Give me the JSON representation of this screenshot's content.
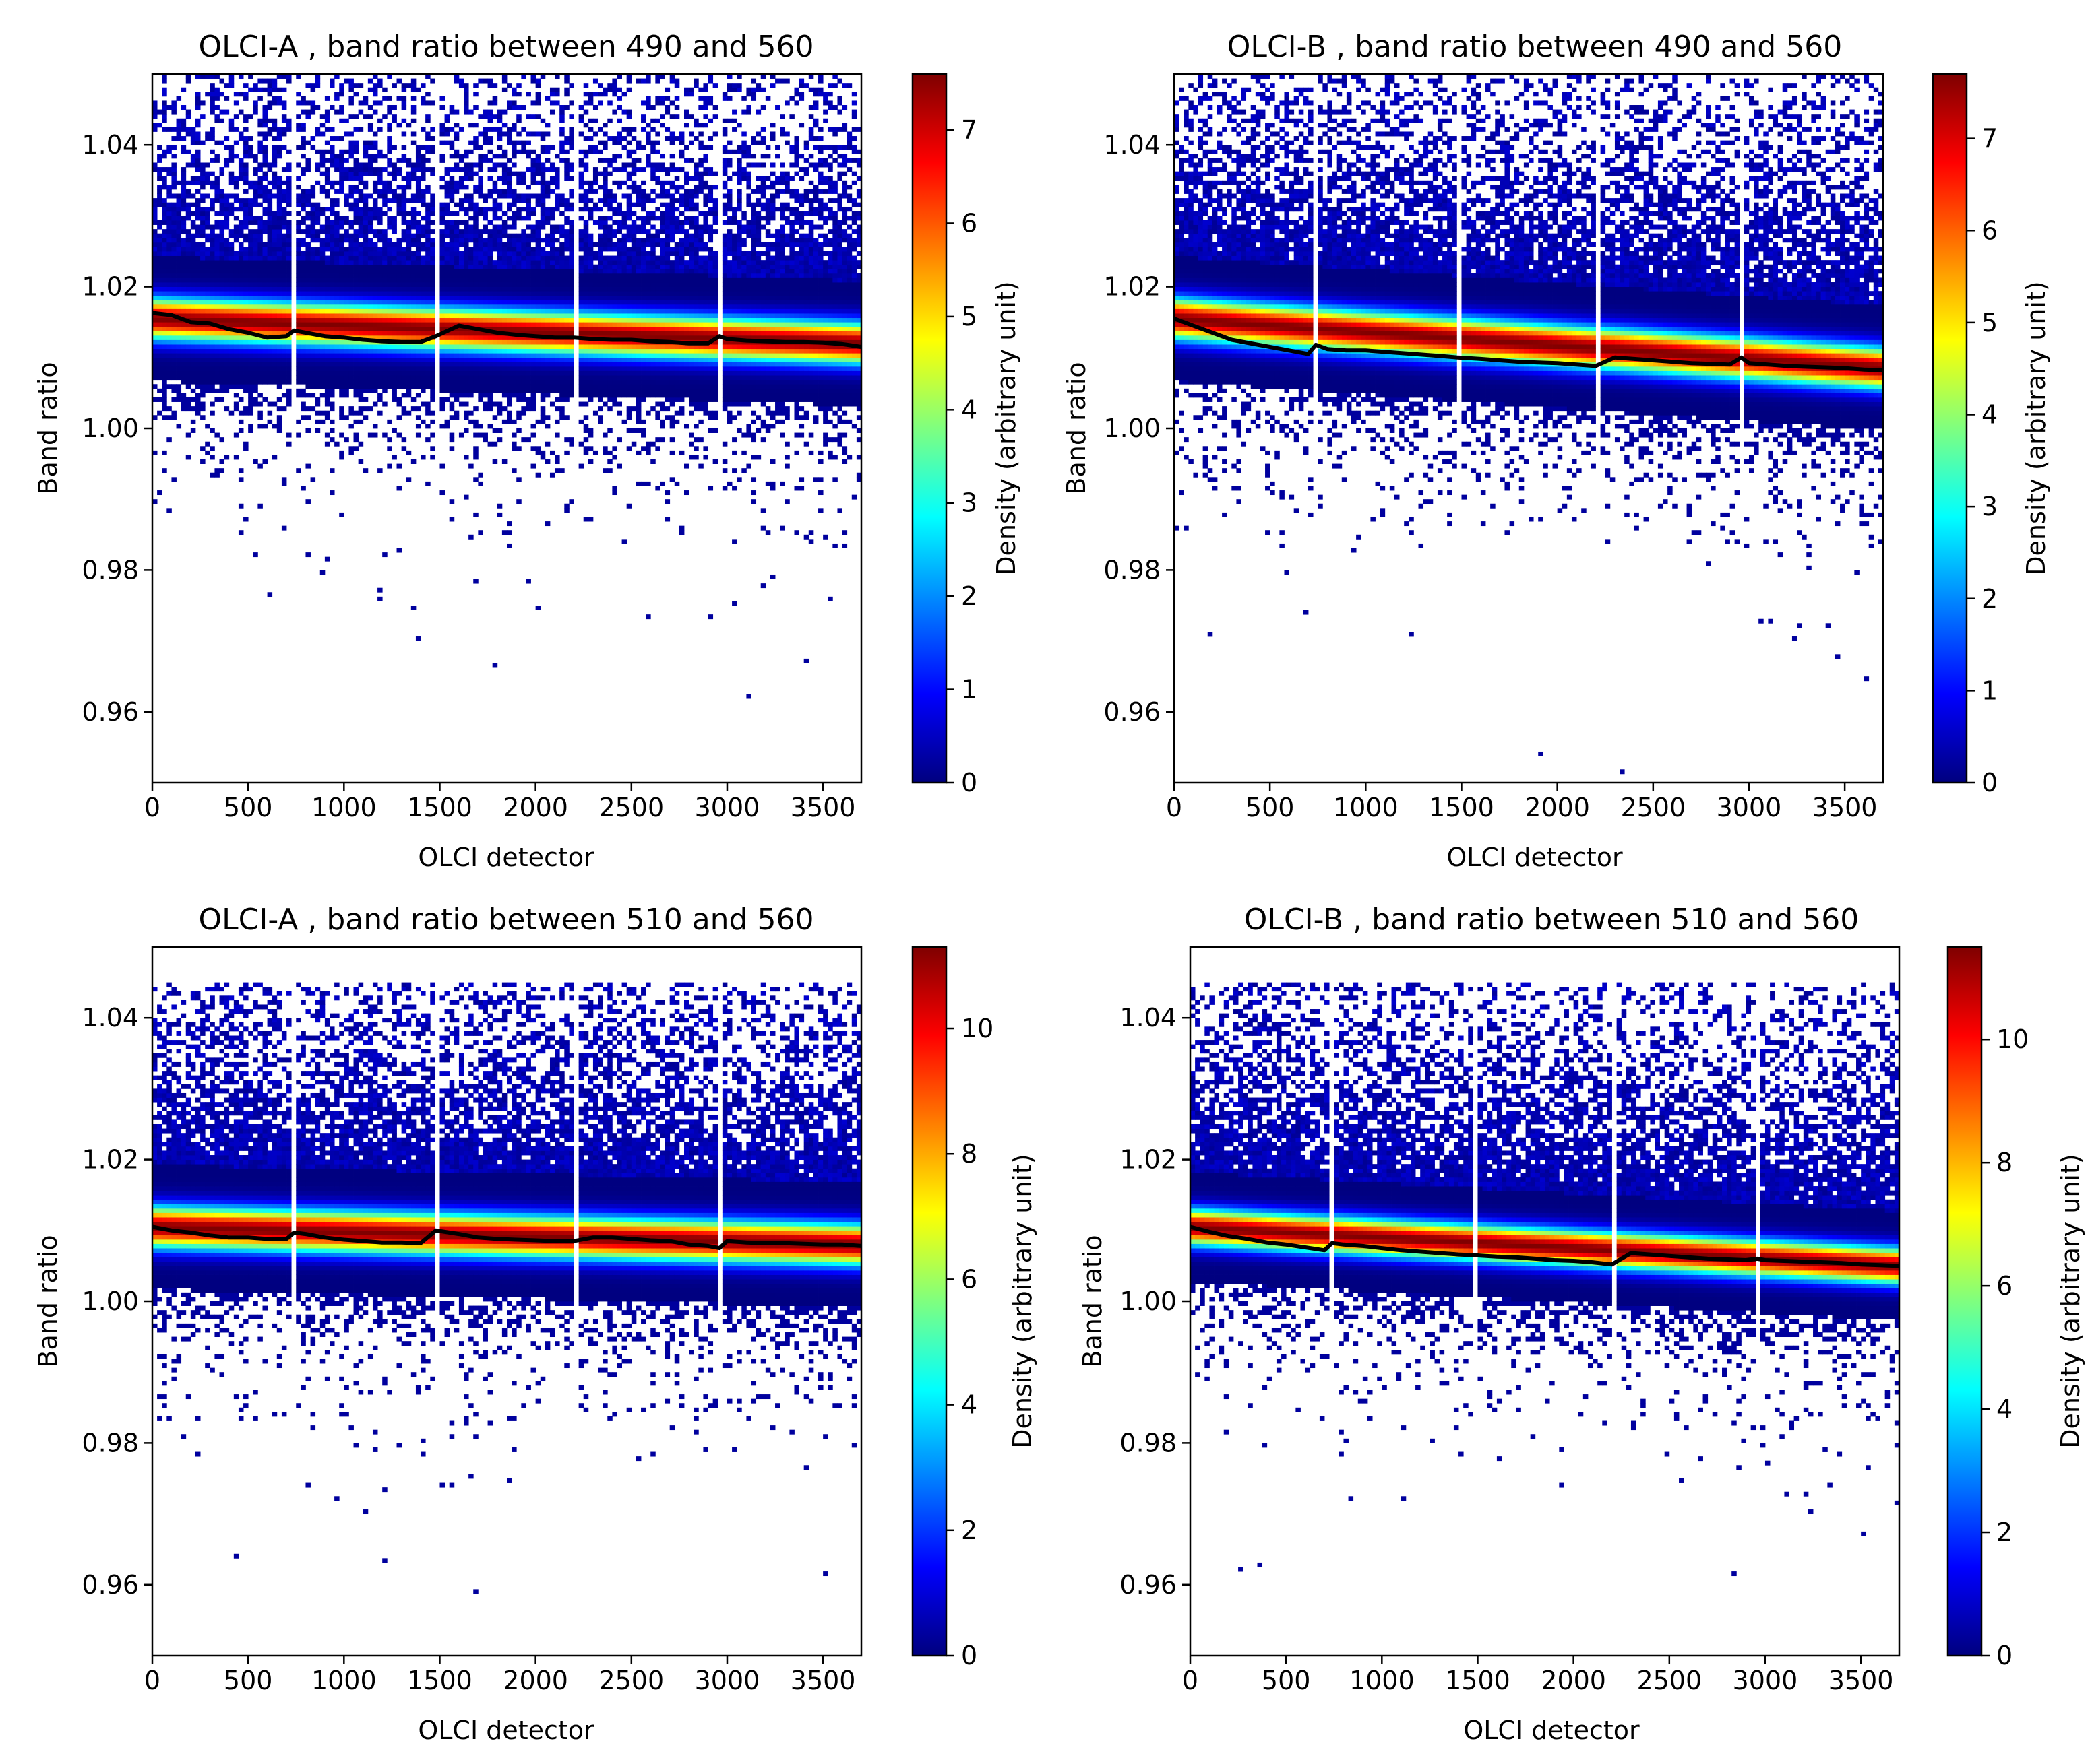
{
  "figure": {
    "layout": "2x2 grid of density heatmaps with colorbars"
  },
  "colors": {
    "median_line": "#000000",
    "colormap": "jet",
    "colormap_stops": [
      "#00007f",
      "#0000ff",
      "#007fff",
      "#00ffff",
      "#7fff7f",
      "#ffff00",
      "#ff7f00",
      "#ff0000",
      "#7f0000"
    ],
    "axes": "#000000",
    "background": "#ffffff"
  },
  "chart_data": [
    {
      "type": "heatmap",
      "title": "OLCI-A , band ratio between 490 and 560",
      "xlabel": "OLCI detector",
      "ylabel": "Band ratio",
      "xlim": [
        0,
        3700
      ],
      "ylim": [
        0.95,
        1.05
      ],
      "xticks": [
        0,
        500,
        1000,
        1500,
        2000,
        2500,
        3000,
        3500
      ],
      "yticks": [
        0.96,
        0.98,
        1.0,
        1.02,
        1.04
      ],
      "ytick_labels": [
        "0.96",
        "0.98",
        "1.00",
        "1.02",
        "1.04"
      ],
      "colorbar": {
        "label": "Density (arbitrary unit)",
        "ticks": [
          0,
          1,
          2,
          3,
          4,
          5,
          6,
          7
        ],
        "range": [
          0,
          7.6
        ]
      },
      "camera_gaps": [
        740,
        1480,
        2220,
        2960
      ],
      "band_center_start": 1.0155,
      "band_center_end": 1.012,
      "band_halfwidth": 0.004,
      "scatter_upper_to": 1.05,
      "median_line": {
        "x": [
          0,
          100,
          200,
          300,
          400,
          500,
          600,
          700,
          740,
          800,
          900,
          1000,
          1100,
          1200,
          1300,
          1400,
          1480,
          1600,
          1700,
          1800,
          1900,
          2000,
          2100,
          2200,
          2300,
          2400,
          2500,
          2600,
          2700,
          2800,
          2900,
          2960,
          3000,
          3100,
          3200,
          3300,
          3400,
          3500,
          3600,
          3700
        ],
        "y": [
          1.0163,
          1.016,
          1.015,
          1.0148,
          1.014,
          1.0135,
          1.0128,
          1.013,
          1.0138,
          1.0135,
          1.013,
          1.0128,
          1.0125,
          1.0123,
          1.0122,
          1.0122,
          1.013,
          1.0145,
          1.014,
          1.0135,
          1.0132,
          1.013,
          1.0128,
          1.0128,
          1.0126,
          1.0125,
          1.0125,
          1.0123,
          1.0122,
          1.012,
          1.012,
          1.013,
          1.0126,
          1.0124,
          1.0123,
          1.0122,
          1.0122,
          1.0121,
          1.0119,
          1.0115
        ]
      }
    },
    {
      "type": "heatmap",
      "title": "OLCI-B , band ratio between 490 and 560",
      "xlabel": "OLCI detector",
      "ylabel": "Band ratio",
      "xlim": [
        0,
        3700
      ],
      "ylim": [
        0.95,
        1.05
      ],
      "xticks": [
        0,
        500,
        1000,
        1500,
        2000,
        2500,
        3000,
        3500
      ],
      "yticks": [
        0.96,
        0.98,
        1.0,
        1.02,
        1.04
      ],
      "ytick_labels": [
        "0.96",
        "0.98",
        "1.00",
        "1.02",
        "1.04"
      ],
      "colorbar": {
        "label": "Density (arbitrary unit)",
        "ticks": [
          0,
          1,
          2,
          3,
          4,
          5,
          6,
          7
        ],
        "range": [
          0,
          7.7
        ]
      },
      "camera_gaps": [
        740,
        1480,
        2220,
        2960
      ],
      "band_center_start": 1.0155,
      "band_center_end": 1.0085,
      "band_halfwidth": 0.004,
      "scatter_upper_to": 1.05,
      "median_line": {
        "x": [
          0,
          100,
          200,
          300,
          400,
          500,
          600,
          700,
          740,
          800,
          900,
          1000,
          1100,
          1200,
          1300,
          1400,
          1480,
          1600,
          1700,
          1800,
          1900,
          2000,
          2100,
          2200,
          2300,
          2400,
          2500,
          2600,
          2700,
          2800,
          2900,
          2960,
          3000,
          3100,
          3200,
          3300,
          3400,
          3500,
          3600,
          3700
        ],
        "y": [
          1.0155,
          1.0145,
          1.0135,
          1.0125,
          1.012,
          1.0115,
          1.011,
          1.0105,
          1.0118,
          1.0112,
          1.011,
          1.011,
          1.0108,
          1.0106,
          1.0104,
          1.0102,
          1.01,
          1.0098,
          1.0096,
          1.0094,
          1.0093,
          1.0092,
          1.009,
          1.0088,
          1.01,
          1.0098,
          1.0096,
          1.0094,
          1.0092,
          1.0091,
          1.009,
          1.01,
          1.0092,
          1.009,
          1.0088,
          1.0087,
          1.0086,
          1.0085,
          1.0083,
          1.0082
        ]
      }
    },
    {
      "type": "heatmap",
      "title": "OLCI-A , band ratio between 510 and 560",
      "xlabel": "OLCI detector",
      "ylabel": "Band ratio",
      "xlim": [
        0,
        3700
      ],
      "ylim": [
        0.95,
        1.05
      ],
      "xticks": [
        0,
        500,
        1000,
        1500,
        2000,
        2500,
        3000,
        3500
      ],
      "yticks": [
        0.96,
        0.98,
        1.0,
        1.02,
        1.04
      ],
      "ytick_labels": [
        "0.96",
        "0.98",
        "1.00",
        "1.02",
        "1.04"
      ],
      "colorbar": {
        "label": "Density (arbitrary unit)",
        "ticks": [
          0,
          2,
          4,
          6,
          8,
          10
        ],
        "range": [
          0,
          11.3
        ]
      },
      "camera_gaps": [
        740,
        1480,
        2220,
        2960
      ],
      "band_center_start": 1.0105,
      "band_center_end": 1.008,
      "band_halfwidth": 0.004,
      "scatter_upper_to": 1.045,
      "median_line": {
        "x": [
          0,
          100,
          200,
          300,
          400,
          500,
          600,
          700,
          740,
          800,
          900,
          1000,
          1100,
          1200,
          1300,
          1400,
          1480,
          1600,
          1700,
          1800,
          1900,
          2000,
          2100,
          2200,
          2300,
          2400,
          2500,
          2600,
          2700,
          2800,
          2900,
          2960,
          3000,
          3100,
          3200,
          3300,
          3400,
          3500,
          3600,
          3700
        ],
        "y": [
          1.0105,
          1.01,
          1.0097,
          1.0093,
          1.009,
          1.009,
          1.0088,
          1.0088,
          1.0097,
          1.0095,
          1.009,
          1.0087,
          1.0085,
          1.0083,
          1.0083,
          1.0082,
          1.01,
          1.0095,
          1.009,
          1.0088,
          1.0087,
          1.0086,
          1.0085,
          1.0085,
          1.009,
          1.009,
          1.0088,
          1.0086,
          1.0085,
          1.008,
          1.0078,
          1.0075,
          1.0085,
          1.0083,
          1.0082,
          1.0082,
          1.0081,
          1.008,
          1.008,
          1.0078
        ]
      }
    },
    {
      "type": "heatmap",
      "title": "OLCI-B , band ratio between 510 and 560",
      "xlabel": "OLCI detector",
      "ylabel": "Band ratio",
      "xlim": [
        0,
        3700
      ],
      "ylim": [
        0.95,
        1.05
      ],
      "xticks": [
        0,
        500,
        1000,
        1500,
        2000,
        2500,
        3000,
        3500
      ],
      "yticks": [
        0.96,
        0.98,
        1.0,
        1.02,
        1.04
      ],
      "ytick_labels": [
        "0.96",
        "0.98",
        "1.00",
        "1.02",
        "1.04"
      ],
      "colorbar": {
        "label": "Density (arbitrary unit)",
        "ticks": [
          0,
          2,
          4,
          6,
          8,
          10
        ],
        "range": [
          0,
          11.5
        ]
      },
      "camera_gaps": [
        740,
        1480,
        2220,
        2960
      ],
      "band_center_start": 1.0105,
      "band_center_end": 1.005,
      "band_halfwidth": 0.0035,
      "scatter_upper_to": 1.045,
      "median_line": {
        "x": [
          0,
          100,
          200,
          300,
          400,
          500,
          600,
          700,
          740,
          800,
          900,
          1000,
          1100,
          1200,
          1300,
          1400,
          1480,
          1600,
          1700,
          1800,
          1900,
          2000,
          2100,
          2200,
          2300,
          2400,
          2500,
          2600,
          2700,
          2800,
          2900,
          2960,
          3000,
          3100,
          3200,
          3300,
          3400,
          3500,
          3600,
          3700
        ],
        "y": [
          1.0105,
          1.0098,
          1.0092,
          1.0088,
          1.0083,
          1.008,
          1.0076,
          1.0072,
          1.0082,
          1.008,
          1.0078,
          1.0075,
          1.0072,
          1.007,
          1.0068,
          1.0066,
          1.0065,
          1.0063,
          1.0062,
          1.006,
          1.0058,
          1.0057,
          1.0055,
          1.0052,
          1.0068,
          1.0066,
          1.0064,
          1.0062,
          1.006,
          1.0059,
          1.0058,
          1.006,
          1.0058,
          1.0057,
          1.0056,
          1.0055,
          1.0054,
          1.0052,
          1.0051,
          1.005
        ]
      }
    }
  ]
}
